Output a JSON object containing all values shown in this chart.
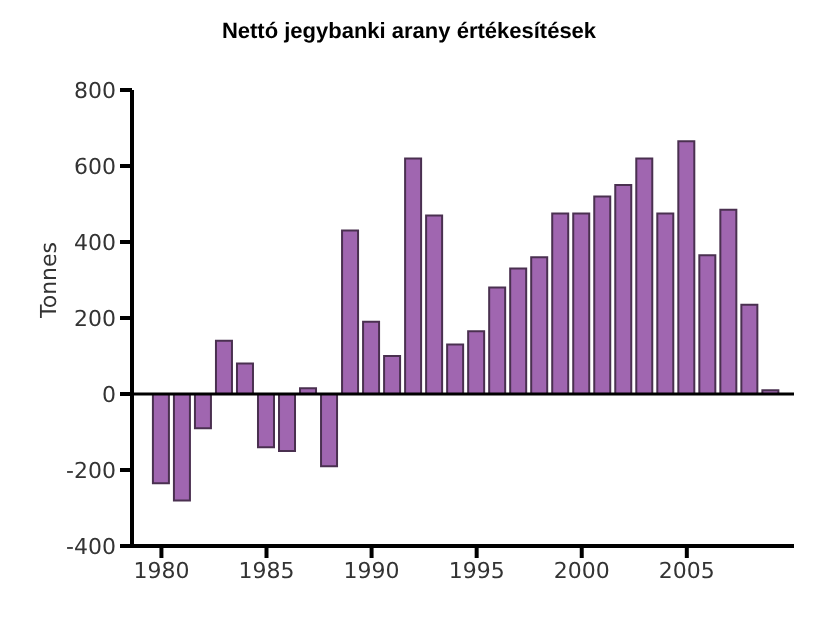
{
  "chart_data": {
    "type": "bar",
    "title": "Nettó jegybanki arany értékesítések",
    "ylabel": "Tonnes",
    "x": [
      1980,
      1981,
      1982,
      1983,
      1984,
      1985,
      1986,
      1987,
      1988,
      1989,
      1990,
      1991,
      1992,
      1993,
      1994,
      1995,
      1996,
      1997,
      1998,
      1999,
      2000,
      2001,
      2002,
      2003,
      2004,
      2005,
      2006,
      2007,
      2008,
      2009
    ],
    "values": [
      -235,
      -280,
      -90,
      140,
      80,
      -140,
      -150,
      15,
      -190,
      430,
      190,
      100,
      620,
      470,
      130,
      165,
      280,
      330,
      360,
      475,
      475,
      520,
      550,
      620,
      475,
      665,
      365,
      485,
      235,
      10
    ],
    "color": "#a066b0",
    "xlim": [
      1978.6,
      2010.1
    ],
    "xticks": [
      1980,
      1985,
      1990,
      1995,
      2000,
      2005
    ],
    "ylim": [
      -400,
      800
    ],
    "yticks": [
      -400,
      -200,
      0,
      200,
      400,
      600,
      800
    ],
    "grid": false,
    "legend": false,
    "ref_lines": [
      {
        "axis": "y",
        "value": 0,
        "color": "#000000"
      }
    ]
  }
}
